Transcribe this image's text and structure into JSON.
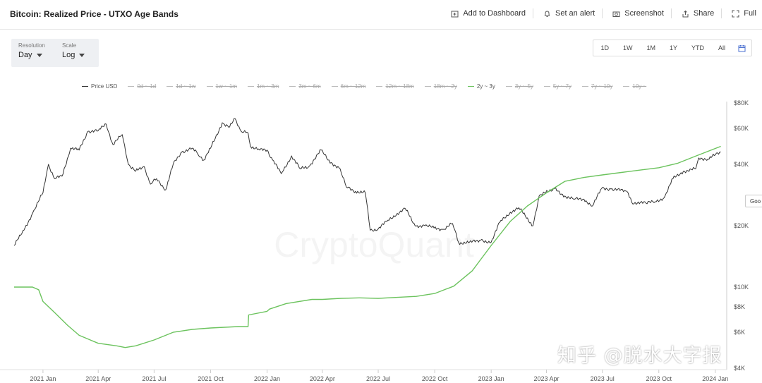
{
  "header": {
    "title": "Bitcoin: Realized Price - UTXO Age Bands",
    "actions": [
      {
        "label": "Add to Dashboard",
        "icon": "dashboard-add-icon"
      },
      {
        "label": "Set an alert",
        "icon": "bell-icon"
      },
      {
        "label": "Screenshot",
        "icon": "camera-icon"
      },
      {
        "label": "Share",
        "icon": "share-icon"
      },
      {
        "label": "Full",
        "icon": "fullscreen-icon"
      }
    ]
  },
  "controls": {
    "resolution": {
      "label": "Resolution",
      "value": "Day"
    },
    "scale": {
      "label": "Scale",
      "value": "Log"
    }
  },
  "ranges": [
    "1D",
    "1W",
    "1M",
    "1Y",
    "YTD",
    "All"
  ],
  "side_button": "Goo",
  "watermark": "CryptoQuant",
  "overlay_text": "知乎 @脱水大字报",
  "colors": {
    "price": "#333333",
    "band_2y_3y": "#6cc35e",
    "disabled": "#bbbbbb"
  },
  "chart_data": {
    "type": "line",
    "title": "Bitcoin: Realized Price - UTXO Age Bands",
    "y_scale": "log",
    "ylim": [
      4000,
      80000
    ],
    "y_ticks": [
      {
        "v": 80000,
        "label": "$80K"
      },
      {
        "v": 60000,
        "label": "$60K"
      },
      {
        "v": 40000,
        "label": "$40K"
      },
      {
        "v": 20000,
        "label": "$20K"
      },
      {
        "v": 10000,
        "label": "$10K"
      },
      {
        "v": 8000,
        "label": "$8K"
      },
      {
        "v": 6000,
        "label": "$6K"
      },
      {
        "v": 4000,
        "label": "$4K"
      }
    ],
    "xlim": [
      "2020-11-15",
      "2024-01-15"
    ],
    "x_ticks": [
      {
        "d": "2021-01-01",
        "label": "2021 Jan"
      },
      {
        "d": "2021-04-01",
        "label": "2021 Apr"
      },
      {
        "d": "2021-07-01",
        "label": "2021 Jul"
      },
      {
        "d": "2021-10-01",
        "label": "2021 Oct"
      },
      {
        "d": "2022-01-01",
        "label": "2022 Jan"
      },
      {
        "d": "2022-04-01",
        "label": "2022 Apr"
      },
      {
        "d": "2022-07-01",
        "label": "2022 Jul"
      },
      {
        "d": "2022-10-01",
        "label": "2022 Oct"
      },
      {
        "d": "2023-01-01",
        "label": "2023 Jan"
      },
      {
        "d": "2023-04-01",
        "label": "2023 Apr"
      },
      {
        "d": "2023-07-01",
        "label": "2023 Jul"
      },
      {
        "d": "2023-10-01",
        "label": "2023 Oct"
      },
      {
        "d": "2024-01-01",
        "label": "2024 Jan"
      }
    ],
    "legend": [
      {
        "name": "Price USD",
        "enabled": true
      },
      {
        "name": "0d ~ 1d",
        "enabled": false
      },
      {
        "name": "1d ~ 1w",
        "enabled": false
      },
      {
        "name": "1w ~ 1m",
        "enabled": false
      },
      {
        "name": "1m ~ 3m",
        "enabled": false
      },
      {
        "name": "3m ~ 6m",
        "enabled": false
      },
      {
        "name": "6m ~ 12m",
        "enabled": false
      },
      {
        "name": "12m ~ 18m",
        "enabled": false
      },
      {
        "name": "18m ~ 2y",
        "enabled": false
      },
      {
        "name": "2y ~ 3y",
        "enabled": true
      },
      {
        "name": "3y ~ 5y",
        "enabled": false
      },
      {
        "name": "5y ~ 7y",
        "enabled": false
      },
      {
        "name": "7y ~ 10y",
        "enabled": false
      },
      {
        "name": "10y ~",
        "enabled": false
      }
    ],
    "series": [
      {
        "name": "Price USD",
        "points": [
          [
            "2020-11-15",
            16000
          ],
          [
            "2020-12-01",
            19000
          ],
          [
            "2020-12-15",
            23000
          ],
          [
            "2021-01-01",
            29000
          ],
          [
            "2021-01-10",
            40000
          ],
          [
            "2021-01-20",
            34000
          ],
          [
            "2021-02-01",
            35000
          ],
          [
            "2021-02-15",
            48000
          ],
          [
            "2021-03-01",
            47000
          ],
          [
            "2021-03-15",
            58000
          ],
          [
            "2021-04-01",
            58500
          ],
          [
            "2021-04-14",
            63000
          ],
          [
            "2021-04-25",
            50000
          ],
          [
            "2021-05-10",
            56000
          ],
          [
            "2021-05-20",
            40000
          ],
          [
            "2021-06-01",
            37000
          ],
          [
            "2021-06-15",
            39000
          ],
          [
            "2021-06-25",
            32000
          ],
          [
            "2021-07-05",
            34000
          ],
          [
            "2021-07-20",
            30000
          ],
          [
            "2021-08-01",
            40000
          ],
          [
            "2021-08-15",
            46000
          ],
          [
            "2021-09-01",
            48000
          ],
          [
            "2021-09-10",
            45000
          ],
          [
            "2021-09-20",
            42000
          ],
          [
            "2021-10-01",
            48000
          ],
          [
            "2021-10-20",
            64000
          ],
          [
            "2021-11-01",
            61000
          ],
          [
            "2021-11-10",
            67000
          ],
          [
            "2021-11-20",
            58000
          ],
          [
            "2021-12-01",
            57000
          ],
          [
            "2021-12-05",
            49000
          ],
          [
            "2021-12-20",
            47000
          ],
          [
            "2022-01-01",
            47000
          ],
          [
            "2022-01-10",
            42000
          ],
          [
            "2022-01-24",
            36000
          ],
          [
            "2022-02-10",
            44000
          ],
          [
            "2022-02-24",
            38000
          ],
          [
            "2022-03-10",
            39000
          ],
          [
            "2022-03-30",
            47000
          ],
          [
            "2022-04-10",
            42000
          ],
          [
            "2022-04-30",
            38000
          ],
          [
            "2022-05-10",
            31000
          ],
          [
            "2022-05-25",
            29500
          ],
          [
            "2022-06-10",
            29000
          ],
          [
            "2022-06-18",
            19000
          ],
          [
            "2022-07-01",
            19300
          ],
          [
            "2022-07-15",
            21000
          ],
          [
            "2022-08-01",
            23000
          ],
          [
            "2022-08-14",
            24300
          ],
          [
            "2022-08-30",
            20000
          ],
          [
            "2022-09-15",
            20000
          ],
          [
            "2022-09-30",
            19500
          ],
          [
            "2022-10-15",
            19200
          ],
          [
            "2022-10-30",
            20500
          ],
          [
            "2022-11-09",
            16500
          ],
          [
            "2022-11-25",
            16500
          ],
          [
            "2022-12-15",
            17000
          ],
          [
            "2023-01-01",
            16600
          ],
          [
            "2023-01-15",
            20800
          ],
          [
            "2023-02-01",
            23300
          ],
          [
            "2023-02-15",
            24500
          ],
          [
            "2023-03-10",
            20000
          ],
          [
            "2023-03-20",
            28000
          ],
          [
            "2023-04-14",
            30400
          ],
          [
            "2023-05-01",
            28000
          ],
          [
            "2023-05-15",
            27000
          ],
          [
            "2023-06-01",
            27000
          ],
          [
            "2023-06-15",
            25000
          ],
          [
            "2023-06-30",
            30500
          ],
          [
            "2023-07-15",
            30300
          ],
          [
            "2023-08-10",
            29500
          ],
          [
            "2023-08-18",
            26000
          ],
          [
            "2023-09-10",
            25800
          ],
          [
            "2023-09-25",
            26200
          ],
          [
            "2023-10-10",
            27500
          ],
          [
            "2023-10-24",
            34000
          ],
          [
            "2023-11-10",
            37000
          ],
          [
            "2023-11-30",
            38000
          ],
          [
            "2023-12-05",
            43000
          ],
          [
            "2023-12-20",
            42500
          ],
          [
            "2024-01-01",
            44500
          ],
          [
            "2024-01-10",
            46000
          ]
        ]
      },
      {
        "name": "2y ~ 3y",
        "points": [
          [
            "2020-11-15",
            10000
          ],
          [
            "2020-12-15",
            10000
          ],
          [
            "2020-12-25",
            9700
          ],
          [
            "2021-01-01",
            8500
          ],
          [
            "2021-01-20",
            7500
          ],
          [
            "2021-02-10",
            6500
          ],
          [
            "2021-03-01",
            5800
          ],
          [
            "2021-04-01",
            5300
          ],
          [
            "2021-05-01",
            5150
          ],
          [
            "2021-05-15",
            5050
          ],
          [
            "2021-06-01",
            5150
          ],
          [
            "2021-07-01",
            5500
          ],
          [
            "2021-08-01",
            6000
          ],
          [
            "2021-09-01",
            6200
          ],
          [
            "2021-10-01",
            6300
          ],
          [
            "2021-11-15",
            6400
          ],
          [
            "2021-12-01",
            6400
          ],
          [
            "2021-12-02",
            7300
          ],
          [
            "2022-01-01",
            7600
          ],
          [
            "2022-01-05",
            7800
          ],
          [
            "2022-02-01",
            8300
          ],
          [
            "2022-03-15",
            8700
          ],
          [
            "2022-04-01",
            8700
          ],
          [
            "2022-05-01",
            8800
          ],
          [
            "2022-06-01",
            8850
          ],
          [
            "2022-07-01",
            8800
          ],
          [
            "2022-08-01",
            8900
          ],
          [
            "2022-09-01",
            9000
          ],
          [
            "2022-10-01",
            9300
          ],
          [
            "2022-11-01",
            10100
          ],
          [
            "2022-12-01",
            12000
          ],
          [
            "2023-01-01",
            16000
          ],
          [
            "2023-02-01",
            21000
          ],
          [
            "2023-03-01",
            25000
          ],
          [
            "2023-04-01",
            29000
          ],
          [
            "2023-05-01",
            33000
          ],
          [
            "2023-06-01",
            34500
          ],
          [
            "2023-07-01",
            35500
          ],
          [
            "2023-08-01",
            36500
          ],
          [
            "2023-09-01",
            37500
          ],
          [
            "2023-10-01",
            38500
          ],
          [
            "2023-11-01",
            40500
          ],
          [
            "2023-12-01",
            44000
          ],
          [
            "2024-01-10",
            49000
          ]
        ]
      }
    ]
  }
}
